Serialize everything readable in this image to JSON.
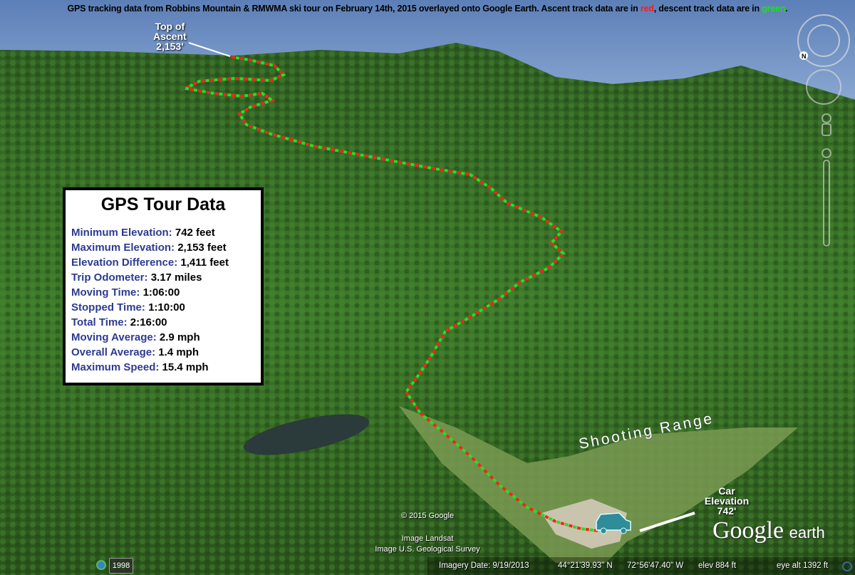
{
  "caption": {
    "prefix": "GPS tracking data from Robbins Mountain & RMWMA ski tour on February 14th, 2015 overlayed onto Google Earth.  Ascent track data are in ",
    "red_word": "red",
    "middle": ", descent track data are in ",
    "green_word": "green",
    "suffix": "."
  },
  "colors": {
    "ascent": "#ff2020",
    "descent": "#22e022",
    "sky": "#6f8fc2",
    "panel_key": "#2d3b91"
  },
  "data_panel": {
    "title": "GPS Tour Data",
    "rows": [
      {
        "key": "Minimum Elevation:",
        "value": "742 feet"
      },
      {
        "key": "Maximum Elevation:",
        "value": "2,153 feet"
      },
      {
        "key": "Elevation Difference:",
        "value": "1,411 feet"
      },
      {
        "key": "Trip Odometer:",
        "value": "3.17 miles"
      },
      {
        "key": "Moving Time:",
        "value": "1:06:00"
      },
      {
        "key": "Stopped Time:",
        "value": "1:10:00"
      },
      {
        "key": "Total Time:",
        "value": "2:16:00"
      },
      {
        "key": "Moving Average:",
        "value": "2.9 mph"
      },
      {
        "key": "Overall Average:",
        "value": "1.4 mph"
      },
      {
        "key": "Maximum Speed:",
        "value": "15.4 mph"
      }
    ]
  },
  "labels": {
    "top_line1": "Top of",
    "top_line2": "Ascent",
    "top_line3": "2,153'",
    "car_line1": "Car",
    "car_line2": "Elevation",
    "car_line3": "742'",
    "shooting_range": "Shooting Range"
  },
  "credits": {
    "copyright": "© 2015 Google",
    "image1": "Image Landsat",
    "image2": "Image U.S. Geological Survey"
  },
  "logo": {
    "google": "Google",
    "earth": "earth"
  },
  "historical": {
    "year": "1998",
    "icon": "clock-icon"
  },
  "status": {
    "imagery_date": "Imagery Date: 9/19/2013",
    "lat": "44°21'39.93\" N",
    "lon": "72°56'47.40\" W",
    "elev": "elev   884 ft",
    "eye_alt": "eye alt   1392 ft"
  },
  "nav": {
    "compass_label": "N",
    "icons": [
      "compass-icon",
      "look-joystick-icon",
      "street-view-pegman-icon",
      "zoom-slider-icon"
    ]
  }
}
